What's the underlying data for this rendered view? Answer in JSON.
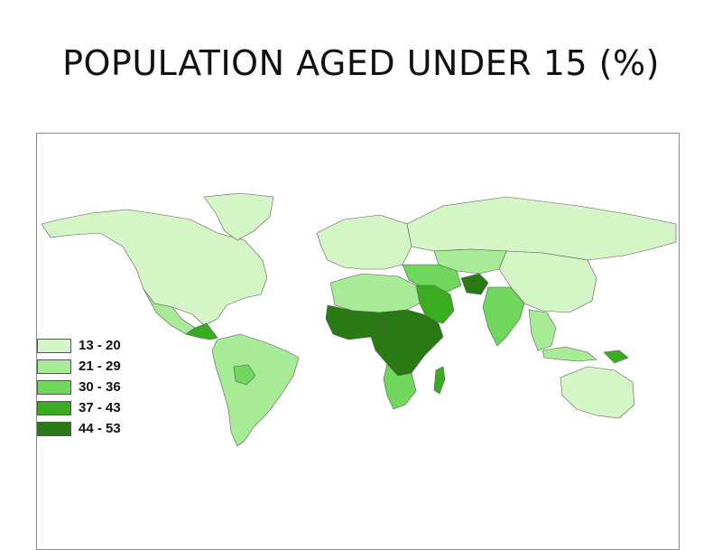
{
  "slide": {
    "title": "POPULATION AGED UNDER 15 (%)"
  },
  "legend": {
    "classes": [
      {
        "label": "13 - 20",
        "color": "#d4f5c6"
      },
      {
        "label": "21 - 29",
        "color": "#a8eb97"
      },
      {
        "label": "30 - 36",
        "color": "#6fd85c"
      },
      {
        "label": "37 - 43",
        "color": "#3aac22"
      },
      {
        "label": "44 - 53",
        "color": "#2a7a14"
      }
    ]
  },
  "map": {
    "type": "choropleth world map",
    "regions": [
      {
        "name": "North America",
        "class": 0
      },
      {
        "name": "Greenland",
        "class": 0
      },
      {
        "name": "Mexico",
        "class": 1
      },
      {
        "name": "Central America",
        "class": 3
      },
      {
        "name": "South America",
        "class": 1
      },
      {
        "name": "Bolivia",
        "class": 2
      },
      {
        "name": "Europe",
        "class": 0
      },
      {
        "name": "Russia",
        "class": 0
      },
      {
        "name": "China",
        "class": 0
      },
      {
        "name": "Central Asia",
        "class": 1
      },
      {
        "name": "Middle East",
        "class": 2
      },
      {
        "name": "Saudi Arabia",
        "class": 3
      },
      {
        "name": "Afghanistan",
        "class": 4
      },
      {
        "name": "India",
        "class": 2
      },
      {
        "name": "Southeast Asia",
        "class": 1
      },
      {
        "name": "North Africa",
        "class": 1
      },
      {
        "name": "West Africa",
        "class": 4
      },
      {
        "name": "Central and East Africa",
        "class": 4
      },
      {
        "name": "Southern Africa",
        "class": 2
      },
      {
        "name": "Madagascar",
        "class": 3
      },
      {
        "name": "Australia",
        "class": 0
      },
      {
        "name": "Indonesia",
        "class": 1
      },
      {
        "name": "Papua New Guinea",
        "class": 3
      }
    ]
  }
}
